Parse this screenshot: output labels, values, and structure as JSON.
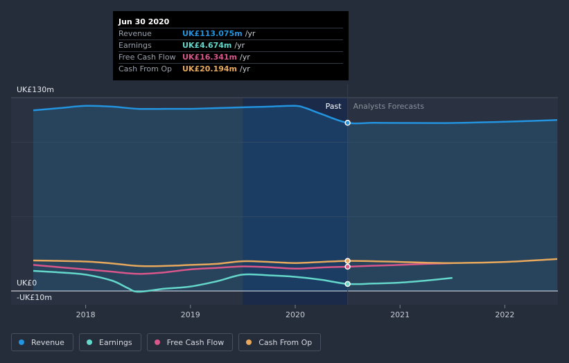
{
  "tooltip": {
    "date": "Jun 30 2020",
    "rows": [
      {
        "label": "Revenue",
        "value": "UK£113.075m",
        "unit": "/yr",
        "color": "#2394df"
      },
      {
        "label": "Earnings",
        "value": "UK£4.674m",
        "unit": "/yr",
        "color": "#64d8cb"
      },
      {
        "label": "Free Cash Flow",
        "value": "UK£16.341m",
        "unit": "/yr",
        "color": "#d9578b"
      },
      {
        "label": "Cash From Op",
        "value": "UK£20.194m",
        "unit": "/yr",
        "color": "#e8a95c"
      }
    ]
  },
  "legend": [
    {
      "label": "Revenue",
      "color": "#2394df"
    },
    {
      "label": "Earnings",
      "color": "#64d8cb"
    },
    {
      "label": "Free Cash Flow",
      "color": "#d9578b"
    },
    {
      "label": "Cash From Op",
      "color": "#e8a95c"
    }
  ],
  "chart_data": {
    "type": "line",
    "title": "",
    "y_labels": {
      "top": "UK£130m",
      "zero": "UK£0",
      "bottom": "-UK£10m"
    },
    "ylim": [
      -10,
      130
    ],
    "xlim": [
      2017.5,
      2022.5
    ],
    "x_ticks": [
      2018,
      2019,
      2020,
      2021,
      2022
    ],
    "x_tick_labels": [
      "2018",
      "2019",
      "2020",
      "2021",
      "2022"
    ],
    "highlight_band": [
      2019.5,
      2020.5
    ],
    "divider_x": 2020.5,
    "past_label": "Past",
    "forecast_label": "Analysts Forecasts",
    "series": [
      {
        "name": "Revenue",
        "color": "#2394df",
        "fill": true,
        "x": [
          2017.5,
          2017.75,
          2018.0,
          2018.25,
          2018.5,
          2018.75,
          2019.0,
          2019.25,
          2019.5,
          2019.75,
          2020.0,
          2020.1,
          2020.25,
          2020.5,
          2020.75,
          2021.0,
          2021.5,
          2022.0,
          2022.5
        ],
        "y": [
          121.5,
          123.0,
          124.5,
          124.0,
          122.5,
          122.5,
          122.5,
          123.0,
          123.5,
          124.0,
          124.5,
          123.0,
          119.0,
          113.1,
          113.1,
          113.0,
          113.0,
          113.8,
          115.0
        ]
      },
      {
        "name": "Earnings",
        "color": "#64d8cb",
        "fill": false,
        "x": [
          2017.5,
          2017.75,
          2018.0,
          2018.25,
          2018.4,
          2018.5,
          2018.75,
          2019.0,
          2019.25,
          2019.5,
          2019.75,
          2020.0,
          2020.25,
          2020.5,
          2020.75,
          2021.0,
          2021.25,
          2021.5
        ],
        "y": [
          13.5,
          12.5,
          11.0,
          7.0,
          2.0,
          -0.5,
          1.5,
          3.0,
          6.5,
          11.0,
          10.5,
          9.5,
          7.5,
          4.7,
          5.0,
          5.6,
          7.0,
          8.8
        ]
      },
      {
        "name": "Free Cash Flow",
        "color": "#d9578b",
        "fill": false,
        "x": [
          2017.5,
          2017.75,
          2018.0,
          2018.25,
          2018.5,
          2018.75,
          2019.0,
          2019.25,
          2019.5,
          2019.75,
          2020.0,
          2020.25,
          2020.5,
          2020.75,
          2021.0,
          2021.25,
          2021.5
        ],
        "y": [
          17.5,
          16.0,
          14.5,
          13.0,
          11.5,
          12.5,
          14.5,
          15.5,
          16.5,
          16.0,
          15.0,
          15.8,
          16.3,
          17.0,
          17.5,
          18.2,
          18.7
        ]
      },
      {
        "name": "Cash From Op",
        "color": "#e8a95c",
        "fill": false,
        "x": [
          2017.5,
          2017.75,
          2018.0,
          2018.25,
          2018.5,
          2018.75,
          2019.0,
          2019.25,
          2019.5,
          2019.75,
          2020.0,
          2020.25,
          2020.5,
          2020.75,
          2021.0,
          2021.25,
          2021.5,
          2022.0,
          2022.5
        ],
        "y": [
          20.5,
          20.2,
          19.8,
          18.5,
          16.8,
          16.8,
          17.5,
          18.2,
          20.0,
          19.5,
          18.8,
          19.5,
          20.2,
          20.0,
          19.5,
          19.0,
          18.8,
          19.5,
          21.5
        ]
      }
    ],
    "markers": [
      {
        "series": "Revenue",
        "x": 2020.5,
        "y": 113.1
      },
      {
        "series": "Cash From Op",
        "x": 2020.5,
        "y": 20.2
      },
      {
        "series": "Free Cash Flow",
        "x": 2020.5,
        "y": 16.3
      },
      {
        "series": "Earnings",
        "x": 2020.5,
        "y": 4.7
      }
    ]
  }
}
